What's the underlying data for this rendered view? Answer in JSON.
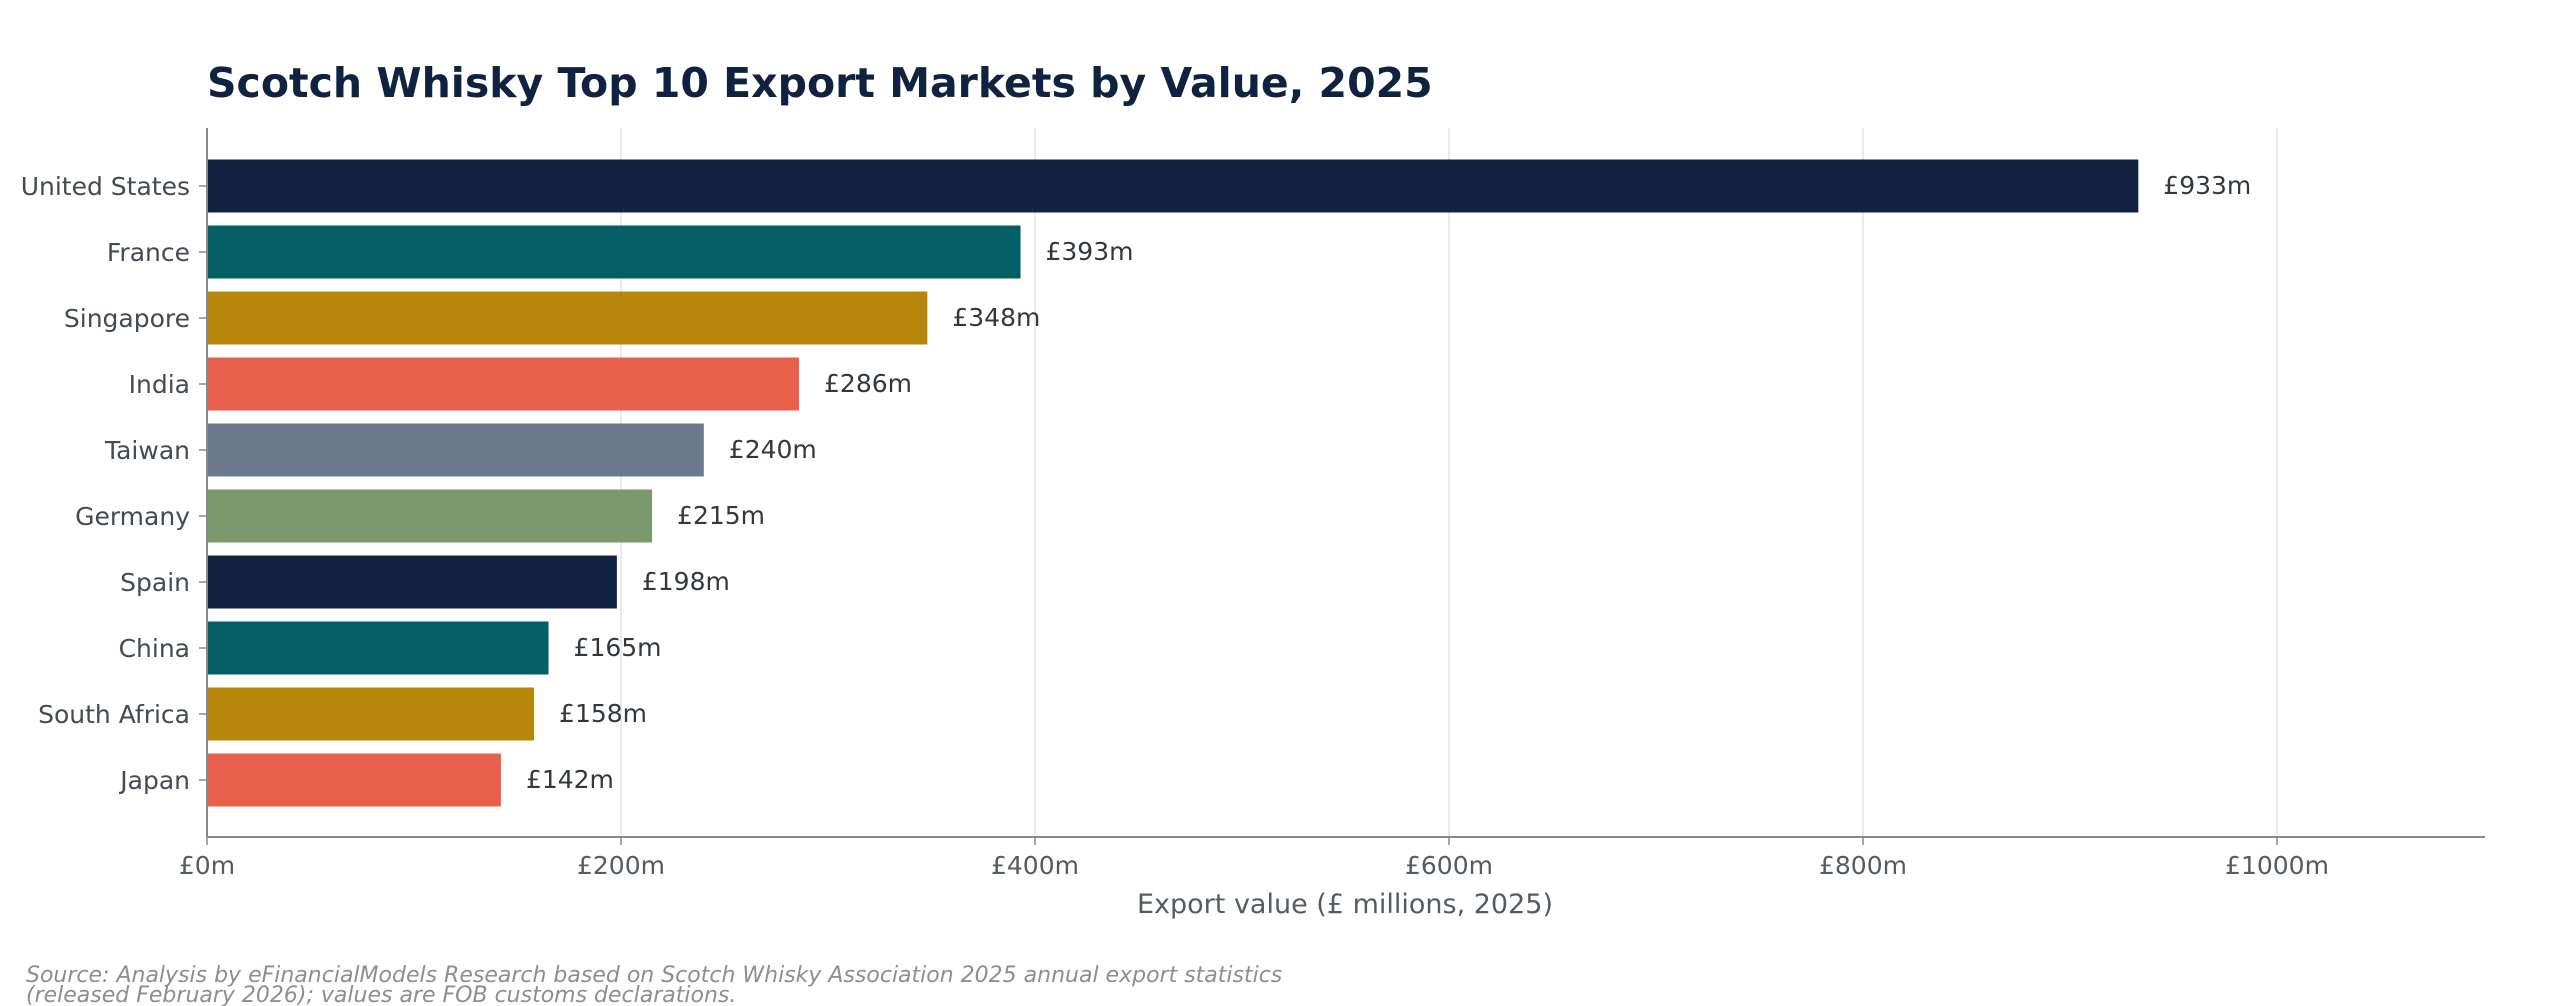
{
  "chart_data": {
    "type": "bar",
    "orientation": "horizontal",
    "title": "Scotch Whisky Top 10 Export Markets by Value, 2025",
    "xlabel": "Export value (£ millions, 2025)",
    "ylabel": "",
    "xlim": [
      0,
      1100
    ],
    "grid": "vertical",
    "categories": [
      "United States",
      "France",
      "Singapore",
      "India",
      "Taiwan",
      "Germany",
      "Spain",
      "China",
      "South Africa",
      "Japan"
    ],
    "values": [
      933,
      393,
      348,
      286,
      240,
      215,
      198,
      165,
      158,
      142
    ],
    "value_labels": [
      "£933m",
      "£393m",
      "£348m",
      "£286m",
      "£240m",
      "£215m",
      "£198m",
      "£165m",
      "£158m",
      "£142m"
    ],
    "colors": [
      "#10223f",
      "#035e66",
      "#b8860b",
      "#e8604c",
      "#6b7a8f",
      "#7a9a6e",
      "#10223f",
      "#035e66",
      "#b8860b",
      "#e8604c"
    ],
    "x_ticks": [
      0,
      200,
      400,
      600,
      800,
      1000
    ],
    "x_tick_labels": [
      "£0m",
      "£200m",
      "£400m",
      "£600m",
      "£800m",
      "£1000m"
    ],
    "source_lines": [
      "Source: Analysis by eFinancialModels Research based on Scotch Whisky Association 2025 annual export statistics",
      "(released February 2026); values are FOB customs declarations."
    ]
  }
}
